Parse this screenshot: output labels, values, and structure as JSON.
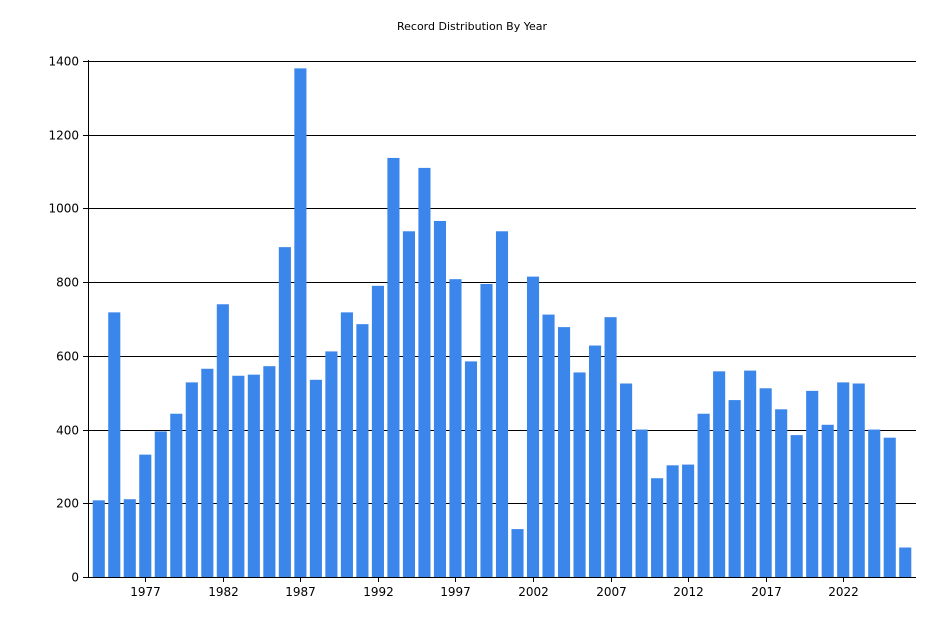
{
  "chart_data": {
    "type": "bar",
    "title": "Record Distribution By Year",
    "xlabel": "",
    "ylabel": "",
    "x": [
      1974,
      1975,
      1976,
      1977,
      1978,
      1979,
      1980,
      1981,
      1982,
      1983,
      1984,
      1985,
      1986,
      1987,
      1988,
      1989,
      1990,
      1991,
      1992,
      1993,
      1994,
      1995,
      1996,
      1997,
      1998,
      1999,
      2000,
      2001,
      2002,
      2003,
      2004,
      2005,
      2006,
      2007,
      2008,
      2009,
      2010,
      2011,
      2012,
      2013,
      2014,
      2015,
      2016,
      2017,
      2018,
      2019,
      2020,
      2021,
      2022,
      2023,
      2024,
      2025,
      2026
    ],
    "values": [
      208,
      718,
      211,
      332,
      395,
      443,
      528,
      565,
      740,
      546,
      549,
      572,
      895,
      1380,
      535,
      612,
      718,
      686,
      790,
      1137,
      938,
      1110,
      966,
      808,
      585,
      795,
      938,
      130,
      815,
      712,
      678,
      555,
      628,
      705,
      525,
      400,
      268,
      303,
      305,
      443,
      558,
      480,
      560,
      512,
      455,
      385,
      505,
      413,
      528,
      525,
      400,
      378,
      80
    ],
    "ylim": [
      0,
      1400
    ],
    "yticks": [
      0,
      200,
      400,
      600,
      800,
      1000,
      1200,
      1400
    ],
    "xticks": [
      1977,
      1982,
      1987,
      1992,
      1997,
      2002,
      2007,
      2012,
      2017,
      2022
    ],
    "grid": "horizontal",
    "legend": "none",
    "bar_color": "#3b86ea",
    "grid_color": "#000000"
  }
}
